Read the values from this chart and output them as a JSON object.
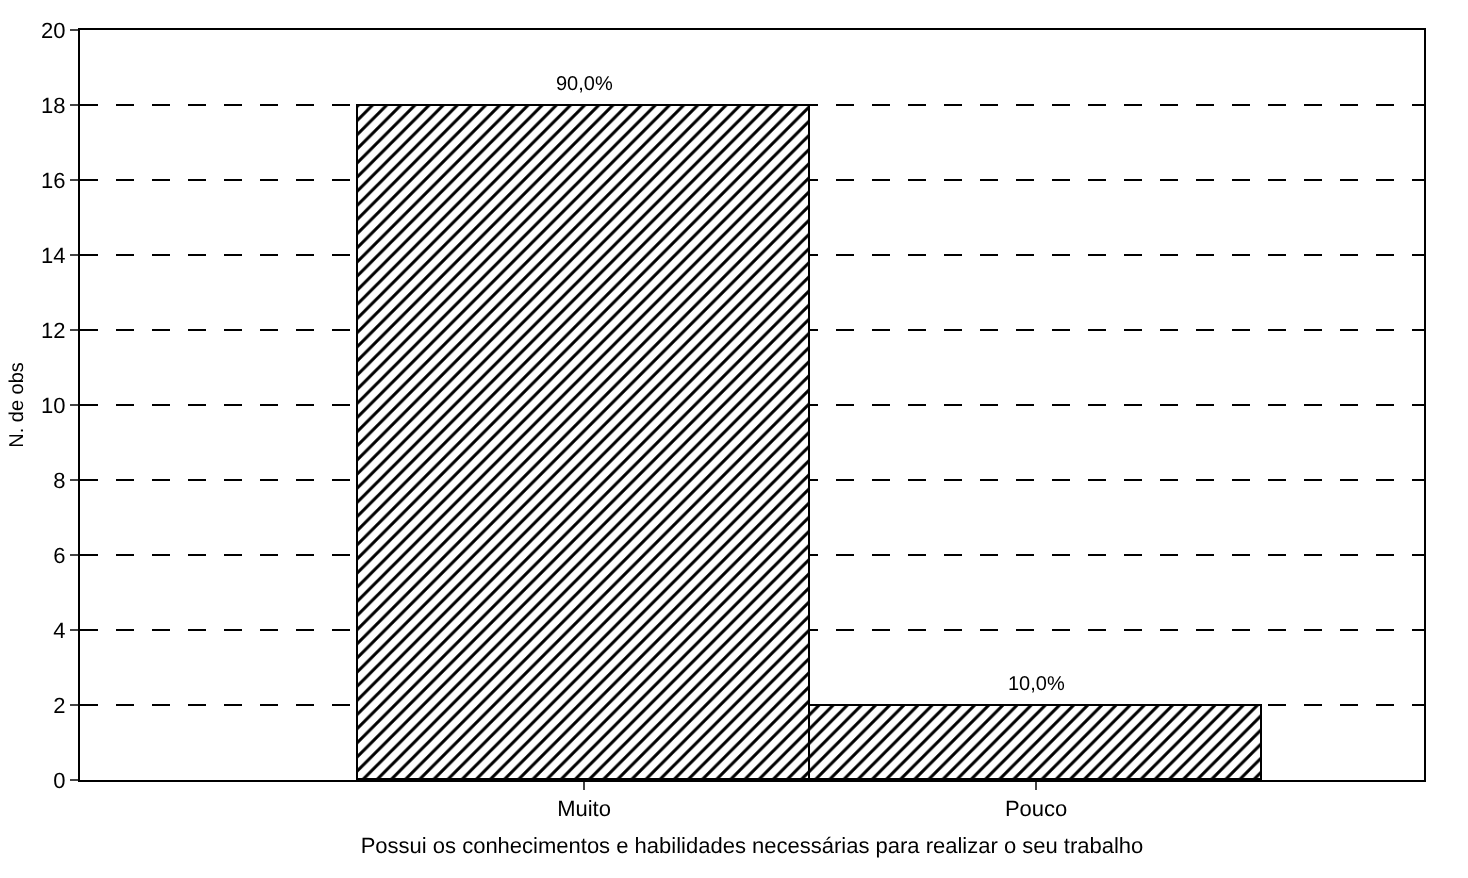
{
  "chart_data": {
    "type": "bar",
    "xlabel": "Possui os conhecimentos e habilidades necessárias para realizar o seu trabalho",
    "ylabel": "N. de obs",
    "categories": [
      "Muito",
      "Pouco"
    ],
    "values": [
      18,
      2
    ],
    "color": "#000000",
    "annotations": [
      {
        "text": "90,0%",
        "x": "Muito",
        "y": 18
      },
      {
        "text": "10,0%",
        "x": "Pouco",
        "y": 2
      }
    ],
    "ylim": [
      0,
      20
    ],
    "yticks": [
      0,
      2,
      4,
      6,
      8,
      10,
      12,
      14,
      16,
      18,
      20
    ],
    "grid": "y",
    "legend": false
  }
}
